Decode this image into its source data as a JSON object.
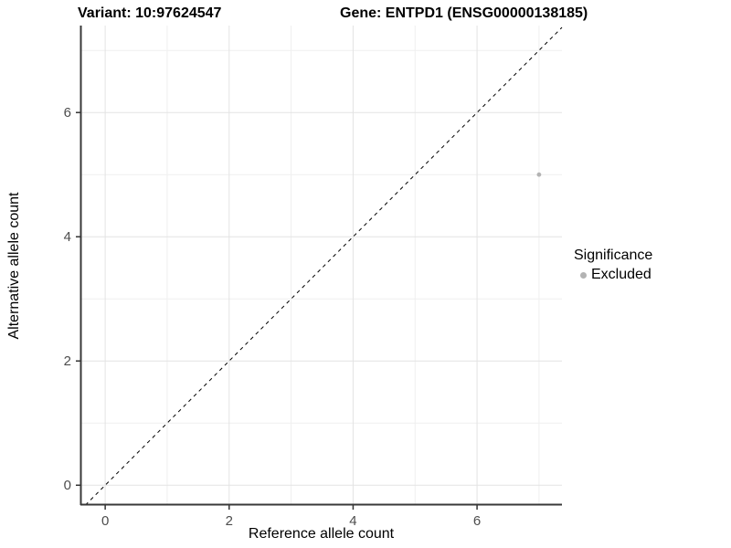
{
  "header": {
    "title_left": "Variant: 10:97624547",
    "title_right": "Gene: ENTPD1 (ENSG00000138185)"
  },
  "legend": {
    "title": "Significance",
    "entries": [
      {
        "label": "Excluded",
        "color": "#b3b3b3"
      }
    ],
    "position": "right"
  },
  "chart_data": {
    "type": "scatter",
    "title": "Variant: 10:97624547   Gene: ENTPD1 (ENSG00000138185)",
    "xlabel": "Reference allele count",
    "ylabel": "Alternative allele count",
    "xlim": [
      -0.4,
      7.37
    ],
    "ylim": [
      -0.32,
      7.4
    ],
    "x_ticks": [
      0,
      2,
      4,
      6
    ],
    "y_ticks": [
      0,
      2,
      4,
      6
    ],
    "x_gridlines_major": [
      0,
      2,
      4,
      6
    ],
    "x_gridlines_minor": [
      1,
      3,
      5,
      7
    ],
    "y_gridlines_major": [
      0,
      2,
      4,
      6
    ],
    "y_gridlines_minor": [
      1,
      3,
      5,
      7
    ],
    "grid": "on",
    "series": [
      {
        "name": "Excluded",
        "color": "#b3b3b3",
        "points": [
          {
            "x": 7,
            "y": 5
          }
        ]
      }
    ],
    "reference_line": {
      "kind": "identity",
      "style": "dashed",
      "color": "#000000"
    },
    "colors": {
      "axis_line": "#383838",
      "tick_mark": "#333333",
      "tick_label": "#4d4d4d",
      "grid_major": "#e3e3e3",
      "grid_minor": "#efefef",
      "background": "#ffffff"
    }
  }
}
